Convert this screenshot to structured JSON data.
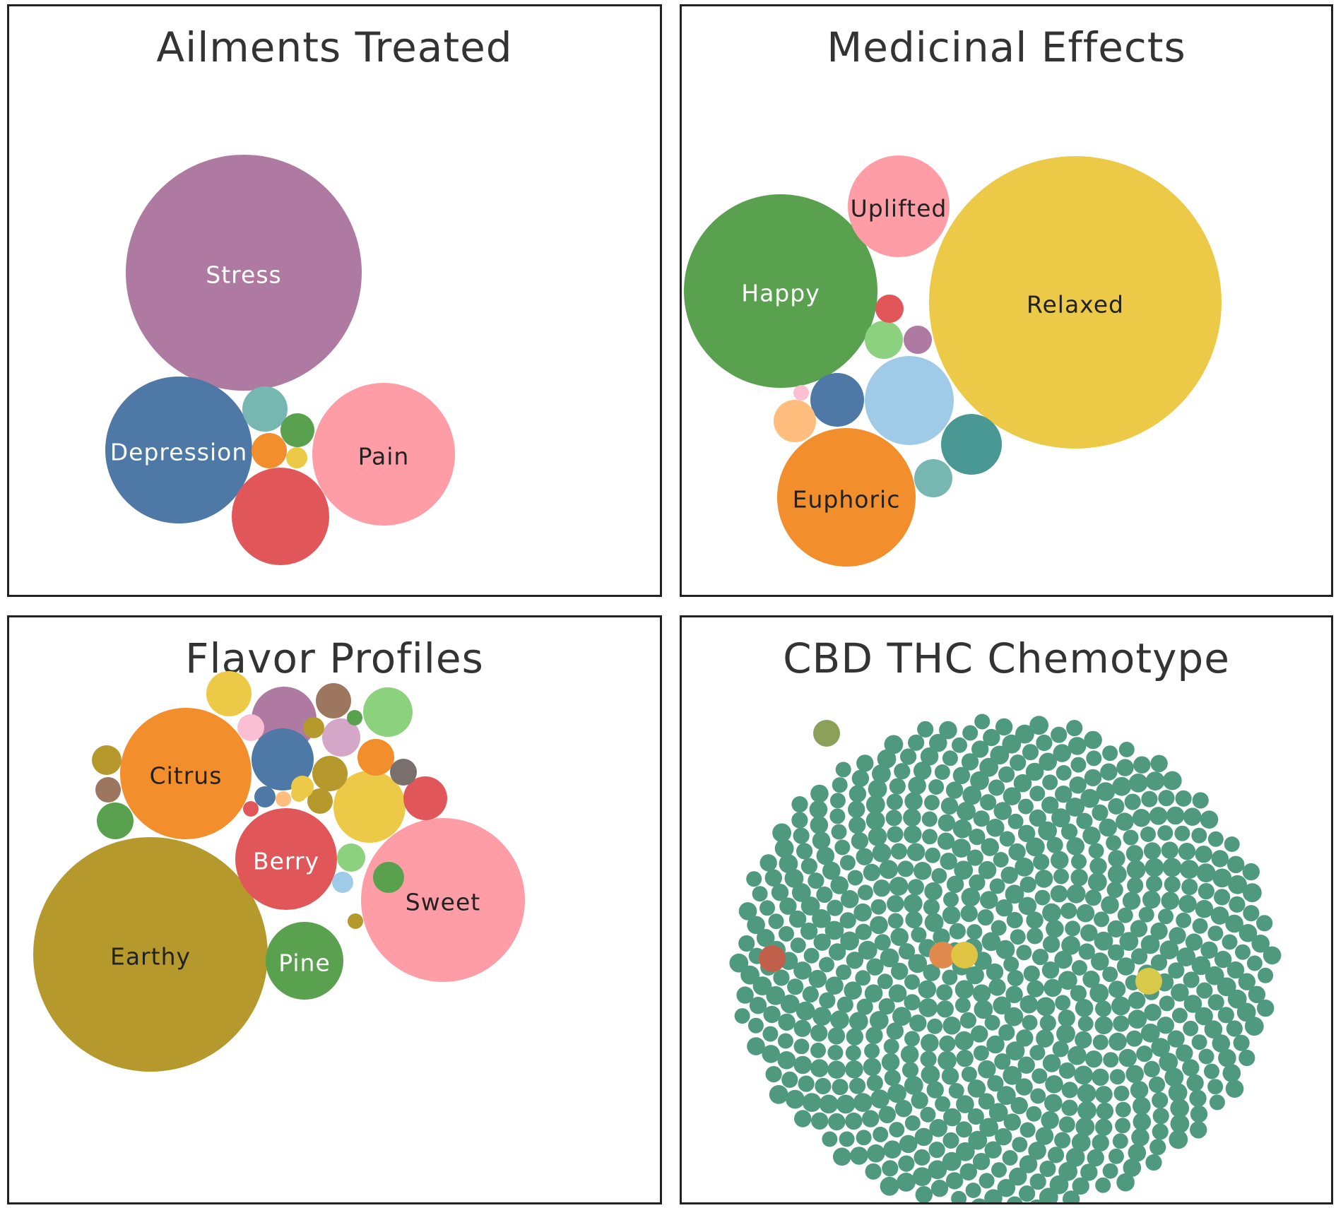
{
  "colors": {
    "purple": "#af7aa1",
    "blue": "#4e79a7",
    "pink": "#ff9da7",
    "red": "#e15759",
    "teal_light": "#76b7b2",
    "green": "#59a14f",
    "orange": "#f28e2b",
    "yellow": "#edc948",
    "green_light": "#8cd17d",
    "teal_dark": "#499894",
    "light_blue": "#a0cbe8",
    "light_pink": "#fabfd2",
    "peach": "#ffbe7d",
    "olive": "#b6992d",
    "brown": "#9d7660",
    "gray": "#79706e",
    "lavender": "#d4a6c8",
    "chemo_green": "#4f9a7e"
  },
  "chart_data": [
    {
      "type": "packed-bubble",
      "title": "Ailments Treated",
      "bubbles": [
        {
          "label": "Stress",
          "value": 100,
          "color": "#af7aa1",
          "text_color": "#ffffff"
        },
        {
          "label": "Depression",
          "value": 39,
          "color": "#4e79a7",
          "text_color": "#ffffff"
        },
        {
          "label": "Pain",
          "value": 37,
          "color": "#ff9da7",
          "text_color": "#222222"
        },
        {
          "label": "",
          "value": 17,
          "color": "#e15759"
        },
        {
          "label": "",
          "value": 3.6,
          "color": "#76b7b2"
        },
        {
          "label": "",
          "value": 2.0,
          "color": "#59a14f"
        },
        {
          "label": "",
          "value": 2.2,
          "color": "#f28e2b"
        },
        {
          "label": "",
          "value": 0.8,
          "color": "#edc948"
        }
      ]
    },
    {
      "type": "packed-bubble",
      "title": "Medicinal Effects",
      "bubbles": [
        {
          "label": "Relaxed",
          "value": 100,
          "color": "#edc948",
          "text_color": "#222222"
        },
        {
          "label": "Happy",
          "value": 44,
          "color": "#59a14f",
          "text_color": "#ffffff"
        },
        {
          "label": "Euphoric",
          "value": 22,
          "color": "#f28e2b",
          "text_color": "#222222"
        },
        {
          "label": "Uplifted",
          "value": 12,
          "color": "#ff9da7",
          "text_color": "#222222"
        },
        {
          "label": "",
          "value": 9.6,
          "color": "#a0cbe8"
        },
        {
          "label": "",
          "value": 4.3,
          "color": "#499894"
        },
        {
          "label": "",
          "value": 3.4,
          "color": "#4e79a7"
        },
        {
          "label": "",
          "value": 2.0,
          "color": "#ffbe7d"
        },
        {
          "label": "",
          "value": 1.7,
          "color": "#8cd17d"
        },
        {
          "label": "",
          "value": 1.7,
          "color": "#76b7b2"
        },
        {
          "label": "",
          "value": 1.0,
          "color": "#e15759"
        },
        {
          "label": "",
          "value": 1.0,
          "color": "#af7aa1"
        },
        {
          "label": "",
          "value": 0.3,
          "color": "#fabfd2"
        }
      ]
    },
    {
      "type": "packed-bubble",
      "title": "Flavor Profiles",
      "bubbles": [
        {
          "label": "Earthy",
          "value": 100,
          "color": "#b6992d",
          "text_color": "#222222"
        },
        {
          "label": "Sweet",
          "value": 49,
          "color": "#ff9da7",
          "text_color": "#222222"
        },
        {
          "label": "Citrus",
          "value": 32,
          "color": "#f28e2b",
          "text_color": "#222222"
        },
        {
          "label": "Berry",
          "value": 19,
          "color": "#e15759",
          "text_color": "#ffffff"
        },
        {
          "label": "Pine",
          "value": 11,
          "color": "#59a14f",
          "text_color": "#ffffff"
        },
        {
          "label": "",
          "value": 9.4,
          "color": "#edc948"
        },
        {
          "label": "",
          "value": 7.2,
          "color": "#af7aa1"
        },
        {
          "label": "",
          "value": 7.0,
          "color": "#4e79a7"
        },
        {
          "label": "",
          "value": 3.7,
          "color": "#edc948"
        },
        {
          "label": "",
          "value": 3.4,
          "color": "#e15759"
        },
        {
          "label": "",
          "value": 4.1,
          "color": "#8cd17d"
        },
        {
          "label": "",
          "value": 2.4,
          "color": "#f28e2b"
        },
        {
          "label": "",
          "value": 2.4,
          "color": "#d4a6c8"
        },
        {
          "label": "",
          "value": 2.1,
          "color": "#59a14f"
        },
        {
          "label": "",
          "value": 2.1,
          "color": "#9d7660"
        },
        {
          "label": "",
          "value": 2.2,
          "color": "#b6992d"
        },
        {
          "label": "",
          "value": 2.5,
          "color": "#59a14f"
        },
        {
          "label": "",
          "value": 1.5,
          "color": "#b6992d"
        },
        {
          "label": "",
          "value": 1.2,
          "color": "#b6992d"
        },
        {
          "label": "",
          "value": 1.2,
          "color": "#9d7660"
        },
        {
          "label": "",
          "value": 1.2,
          "color": "#79706e"
        },
        {
          "label": "",
          "value": 1.5,
          "color": "#8cd17d"
        },
        {
          "label": "",
          "value": 1.1,
          "color": "#fabfd2"
        },
        {
          "label": "",
          "value": 1.0,
          "color": "#edc948"
        },
        {
          "label": "",
          "value": 0.7,
          "color": "#b6992d"
        },
        {
          "label": "",
          "value": 0.7,
          "color": "#4e79a7"
        },
        {
          "label": "",
          "value": 0.7,
          "color": "#a0cbe8"
        },
        {
          "label": "",
          "value": 0.4,
          "color": "#edc948"
        },
        {
          "label": "",
          "value": 0.4,
          "color": "#e15759"
        },
        {
          "label": "",
          "value": 0.3,
          "color": "#ffbe7d"
        },
        {
          "label": "",
          "value": 0.3,
          "color": "#b6992d"
        },
        {
          "label": "",
          "value": 0.3,
          "color": "#59a14f"
        }
      ]
    },
    {
      "type": "packed-bubble",
      "title": "CBD THC Chemotype",
      "bubble_color": "#4f9a7e",
      "bubble_count": 700,
      "highlighted": [
        {
          "color": "#8da05a"
        },
        {
          "color": "#c0604a"
        },
        {
          "color": "#d9c94a"
        },
        {
          "color": "#e08a4e"
        },
        {
          "color": "#e0c444"
        }
      ]
    }
  ]
}
